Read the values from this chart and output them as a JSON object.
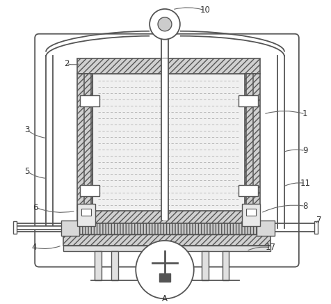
{
  "fig_width": 4.77,
  "fig_height": 4.37,
  "dpi": 100,
  "bg_color": "#ffffff",
  "lc": "#555555",
  "hatch_fc": "#d0d0d0",
  "inner_fc": "#e8e8e8"
}
